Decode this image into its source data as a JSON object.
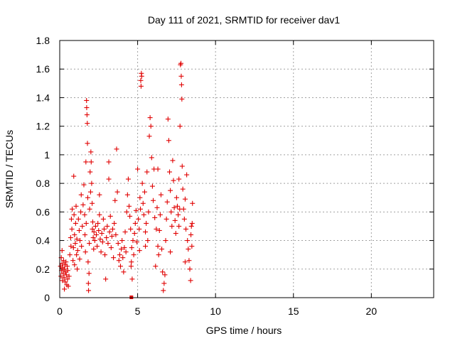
{
  "chart_data": {
    "type": "scatter",
    "title": "Day 111 of 2021, SRMTID for receiver dav1",
    "xlabel": "GPS time / hours",
    "ylabel": "SRMTID / TECUs",
    "xlim": [
      0,
      24
    ],
    "ylim": [
      0,
      1.8
    ],
    "xticks": [
      0,
      5,
      10,
      15,
      20
    ],
    "xtick_labels": [
      "0",
      "5",
      "10",
      "15",
      "20"
    ],
    "yticks": [
      0,
      0.2,
      0.4,
      0.6,
      0.8,
      1,
      1.2,
      1.4,
      1.6,
      1.8
    ],
    "ytick_labels": [
      "0",
      "0.2",
      "0.4",
      "0.6",
      "0.8",
      "1",
      "1.2",
      "1.4",
      "1.6",
      "1.8"
    ],
    "grid": true,
    "marker": "+",
    "color": "#e00000",
    "series": [
      {
        "name": "dav1",
        "points": [
          [
            0.05,
            0.22
          ],
          [
            0.08,
            0.15
          ],
          [
            0.1,
            0.28
          ],
          [
            0.12,
            0.19
          ],
          [
            0.15,
            0.24
          ],
          [
            0.18,
            0.12
          ],
          [
            0.2,
            0.21
          ],
          [
            0.22,
            0.17
          ],
          [
            0.25,
            0.26
          ],
          [
            0.28,
            0.14
          ],
          [
            0.3,
            0.2
          ],
          [
            0.33,
            0.23
          ],
          [
            0.35,
            0.11
          ],
          [
            0.38,
            0.18
          ],
          [
            0.4,
            0.25
          ],
          [
            0.42,
            0.16
          ],
          [
            0.45,
            0.09
          ],
          [
            0.48,
            0.22
          ],
          [
            0.5,
            0.13
          ],
          [
            0.52,
            0.19
          ],
          [
            0.55,
            0.08
          ],
          [
            0.6,
            0.15
          ],
          [
            0.65,
            0.3
          ],
          [
            0.7,
            0.42
          ],
          [
            0.72,
            0.36
          ],
          [
            0.75,
            0.55
          ],
          [
            0.78,
            0.48
          ],
          [
            0.8,
            0.62
          ],
          [
            0.85,
            0.26
          ],
          [
            0.88,
            0.35
          ],
          [
            0.9,
            0.85
          ],
          [
            0.92,
            0.58
          ],
          [
            0.95,
            0.44
          ],
          [
            1.0,
            0.38
          ],
          [
            1.02,
            0.52
          ],
          [
            1.05,
            0.64
          ],
          [
            1.08,
            0.3
          ],
          [
            1.1,
            0.41
          ],
          [
            1.12,
            0.2
          ],
          [
            1.15,
            0.33
          ],
          [
            1.2,
            0.55
          ],
          [
            1.25,
            0.47
          ],
          [
            1.28,
            0.27
          ],
          [
            1.3,
            0.4
          ],
          [
            1.35,
            0.6
          ],
          [
            1.38,
            0.72
          ],
          [
            1.4,
            0.36
          ],
          [
            1.45,
            0.5
          ],
          [
            1.5,
            0.65
          ],
          [
            1.55,
            0.79
          ],
          [
            1.6,
            0.58
          ],
          [
            1.62,
            0.44
          ],
          [
            1.65,
            0.32
          ],
          [
            1.68,
            0.95
          ],
          [
            1.7,
            0.52
          ],
          [
            1.72,
            1.38
          ],
          [
            1.73,
            1.33
          ],
          [
            1.75,
            1.28
          ],
          [
            1.77,
            1.22
          ],
          [
            1.78,
            1.08
          ],
          [
            1.8,
            0.7
          ],
          [
            1.82,
            0.25
          ],
          [
            1.84,
            0.1
          ],
          [
            1.85,
            0.05
          ],
          [
            1.88,
            0.17
          ],
          [
            1.9,
            0.38
          ],
          [
            1.92,
            0.62
          ],
          [
            1.95,
            0.88
          ],
          [
            1.98,
            0.74
          ],
          [
            2.0,
            1.02
          ],
          [
            2.02,
            0.95
          ],
          [
            2.05,
            0.8
          ],
          [
            2.08,
            0.66
          ],
          [
            2.1,
            0.48
          ],
          [
            2.12,
            0.53
          ],
          [
            2.15,
            0.42
          ],
          [
            2.18,
            0.34
          ],
          [
            2.2,
            0.46
          ],
          [
            2.25,
            0.4
          ],
          [
            2.3,
            0.5
          ],
          [
            2.35,
            0.44
          ],
          [
            2.4,
            0.36
          ],
          [
            2.45,
            0.52
          ],
          [
            2.5,
            0.47
          ],
          [
            2.55,
            0.58
          ],
          [
            2.6,
            0.41
          ],
          [
            2.65,
            0.32
          ],
          [
            2.7,
            0.45
          ],
          [
            2.75,
            0.39
          ],
          [
            2.8,
            0.55
          ],
          [
            2.85,
            0.48
          ],
          [
            2.9,
            0.3
          ],
          [
            2.95,
            0.13
          ],
          [
            3.0,
            0.42
          ],
          [
            3.05,
            0.5
          ],
          [
            3.1,
            0.38
          ],
          [
            3.15,
            0.83
          ],
          [
            3.2,
            0.46
          ],
          [
            3.25,
            0.57
          ],
          [
            3.3,
            0.35
          ],
          [
            3.35,
            0.43
          ],
          [
            3.4,
            0.48
          ],
          [
            3.45,
            0.28
          ],
          [
            3.5,
            0.52
          ],
          [
            3.55,
            0.68
          ],
          [
            3.6,
            0.44
          ],
          [
            3.65,
            1.04
          ],
          [
            3.7,
            0.74
          ],
          [
            3.75,
            0.38
          ],
          [
            3.8,
            0.26
          ],
          [
            3.85,
            0.3
          ],
          [
            3.9,
            0.22
          ],
          [
            3.95,
            0.34
          ],
          [
            4.0,
            0.4
          ],
          [
            4.05,
            0.28
          ],
          [
            4.1,
            0.18
          ],
          [
            4.15,
            0.35
          ],
          [
            4.2,
            0.46
          ],
          [
            4.25,
            0.32
          ],
          [
            4.3,
            0.6
          ],
          [
            4.35,
            0.72
          ],
          [
            4.4,
            0.83
          ],
          [
            4.45,
            0.64
          ],
          [
            4.5,
            0.57
          ],
          [
            4.55,
            0.48
          ],
          [
            4.58,
            0.22
          ],
          [
            4.62,
            0.35
          ],
          [
            4.65,
            0.13
          ],
          [
            4.7,
            0.4
          ],
          [
            4.75,
            0.3
          ],
          [
            4.8,
            0.45
          ],
          [
            4.85,
            0.52
          ],
          [
            4.9,
            0.61
          ],
          [
            4.95,
            0.39
          ],
          [
            5.0,
            0.9
          ],
          [
            5.05,
            0.55
          ],
          [
            5.1,
            0.48
          ],
          [
            5.12,
            0.33
          ],
          [
            5.15,
            0.7
          ],
          [
            5.18,
            0.62
          ],
          [
            5.2,
            1.52
          ],
          [
            5.22,
            1.48
          ],
          [
            5.24,
            1.57
          ],
          [
            5.26,
            1.55
          ],
          [
            5.3,
            0.8
          ],
          [
            5.35,
            0.66
          ],
          [
            5.4,
            0.58
          ],
          [
            5.45,
            0.74
          ],
          [
            5.5,
            0.46
          ],
          [
            5.55,
            0.52
          ],
          [
            5.6,
            0.88
          ],
          [
            5.65,
            0.4
          ],
          [
            5.7,
            0.6
          ],
          [
            5.75,
            1.13
          ],
          [
            5.8,
            1.26
          ],
          [
            5.85,
            1.2
          ],
          [
            5.9,
            0.98
          ],
          [
            5.95,
            0.78
          ],
          [
            6.0,
            0.68
          ],
          [
            6.05,
            0.9
          ],
          [
            6.1,
            0.56
          ],
          [
            6.15,
            0.22
          ],
          [
            6.2,
            0.48
          ],
          [
            6.25,
            0.63
          ],
          [
            6.3,
            0.36
          ],
          [
            6.35,
            0.3
          ],
          [
            6.4,
            0.47
          ],
          [
            6.45,
            0.58
          ],
          [
            6.5,
            0.72
          ],
          [
            6.55,
            0.34
          ],
          [
            6.6,
            0.18
          ],
          [
            6.65,
            0.05
          ],
          [
            6.7,
            0.1
          ],
          [
            6.75,
            0.16
          ],
          [
            6.8,
            0.4
          ],
          [
            6.85,
            0.55
          ],
          [
            6.9,
            0.67
          ],
          [
            6.95,
            1.25
          ],
          [
            7.0,
            1.1
          ],
          [
            7.05,
            0.88
          ],
          [
            7.1,
            0.75
          ],
          [
            7.15,
            0.6
          ],
          [
            7.2,
            0.5
          ],
          [
            7.25,
            0.96
          ],
          [
            7.3,
            0.82
          ],
          [
            7.35,
            0.63
          ],
          [
            7.4,
            0.54
          ],
          [
            7.45,
            0.45
          ],
          [
            7.5,
            0.7
          ],
          [
            7.55,
            0.64
          ],
          [
            7.6,
            0.58
          ],
          [
            7.65,
            0.5
          ],
          [
            7.7,
            0.62
          ],
          [
            7.72,
            1.2
          ],
          [
            7.75,
            1.63
          ],
          [
            7.78,
            1.64
          ],
          [
            7.8,
            1.55
          ],
          [
            7.82,
            1.49
          ],
          [
            7.84,
            1.39
          ],
          [
            7.86,
            0.92
          ],
          [
            7.9,
            0.76
          ],
          [
            7.95,
            0.62
          ],
          [
            8.0,
            0.55
          ],
          [
            8.05,
            0.69
          ],
          [
            8.1,
            0.48
          ],
          [
            8.15,
            0.86
          ],
          [
            8.2,
            0.4
          ],
          [
            8.25,
            0.34
          ],
          [
            8.3,
            0.26
          ],
          [
            8.35,
            0.2
          ],
          [
            8.4,
            0.12
          ],
          [
            8.42,
            0.44
          ],
          [
            8.45,
            0.5
          ],
          [
            8.48,
            0.36
          ],
          [
            8.5,
            0.52
          ],
          [
            8.52,
            0.66
          ],
          [
            0.15,
            0.33
          ],
          [
            0.3,
            0.06
          ],
          [
            0.95,
            0.23
          ],
          [
            2.55,
            0.72
          ],
          [
            3.15,
            0.95
          ],
          [
            4.6,
            0.25
          ],
          [
            5.5,
            0.36
          ],
          [
            6.3,
            0.9
          ],
          [
            7.1,
            0.32
          ],
          [
            7.65,
            0.83
          ],
          [
            8.05,
            0.25
          ]
        ]
      }
    ],
    "annotations": [
      {
        "x": 4.6,
        "y": 0,
        "mark": "filled-square"
      }
    ]
  }
}
